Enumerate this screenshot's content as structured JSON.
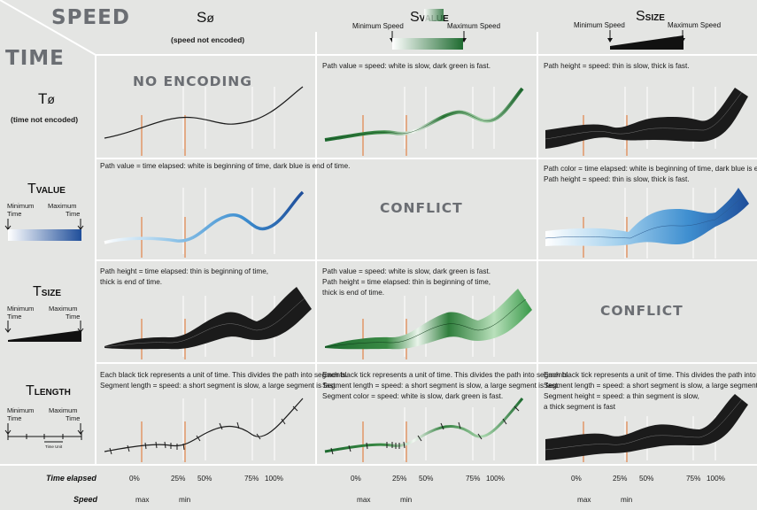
{
  "header": {
    "speed_label": "SPEED",
    "time_label": "TIME",
    "col0": {
      "symbol": "S",
      "slash": "ø",
      "note": "(speed not encoded)"
    },
    "col1": {
      "symbol": "S",
      "small": "VALUE",
      "min": "Minimum Speed",
      "max": "Maximum Speed"
    },
    "col2": {
      "symbol": "S",
      "small": "SIZE",
      "min": "Minimum Speed",
      "max": "Maximum Speed"
    }
  },
  "rows": {
    "r0": {
      "symbol": "T",
      "slash": "ø",
      "note": "(time not  encoded)"
    },
    "r1": {
      "symbol": "T",
      "small": "VALUE",
      "min1": "Minimum",
      "min2": "Time",
      "max1": "Maximum",
      "max2": "Time"
    },
    "r2": {
      "symbol": "T",
      "small": "SIZE",
      "min1": "Minimum",
      "min2": "Time",
      "max1": "Maximum",
      "max2": "Time"
    },
    "r3": {
      "symbol": "T",
      "small": "LENGTH",
      "min1": "Minimum",
      "min2": "Time",
      "max1": "Maximum",
      "max2": "Time",
      "unit": "Time Unit"
    }
  },
  "cells": {
    "c00": {
      "big": "NO ENCODING"
    },
    "c01": {
      "l1": "Path value = speed: white is slow, dark green is fast."
    },
    "c02": {
      "l1": "Path height = speed: thin is slow, thick is fast."
    },
    "c10": {
      "l1": "Path value = time elapsed: white is beginning of time, dark blue is end of time."
    },
    "c11": {
      "big": "CONFLICT"
    },
    "c12": {
      "l1": "Path color = time elapsed: white is beginning of time, dark blue is end of time.",
      "l2": "Path height = speed: thin is slow, thick is fast."
    },
    "c20": {
      "l1": "Path height = time elapsed: thin is beginning of time,",
      "l2": "thick is end of time."
    },
    "c21": {
      "l1": "Path value = speed: white is slow, dark green is fast.",
      "l2": "Path height = time elapsed: thin is beginning of time,",
      "l3": "thick is end of time."
    },
    "c22": {
      "big": "CONFLICT"
    },
    "c30": {
      "l1": "Each black tick represents a unit of time. This divides the path into segments.",
      "l2": "Segment length = speed: a short segment is slow, a large segment is fast."
    },
    "c31": {
      "l1": "Each black tick represents a unit of time. This divides the path into segments.",
      "l2": "Segment length = speed: a short segment is slow, a large segment is fast.",
      "l3": "Segment color = speed: white is slow, dark green is fast."
    },
    "c32": {
      "l1": "Each black tick represents a unit of time. This divides the path into segments.",
      "l2": "Segment length = speed: a short segment is slow, a large segment is fast.",
      "l3": "Segment height = speed: a thin segment is slow,",
      "l4": "a thick segment is fast"
    }
  },
  "footer": {
    "time_elapsed": "Time elapsed",
    "speed": "Speed",
    "ticks": [
      "0%",
      "25%",
      "50%",
      "75%",
      "100%"
    ],
    "max": "max",
    "min": "min"
  },
  "colors": {
    "background": "#e4e5e3",
    "grid_lines": "#ffffff",
    "path_black": "#1b1b1b",
    "speed_green_dark": "#1e6b30",
    "time_blue_dark": "#1f4e9a",
    "speed_marker": "#e0702a"
  }
}
